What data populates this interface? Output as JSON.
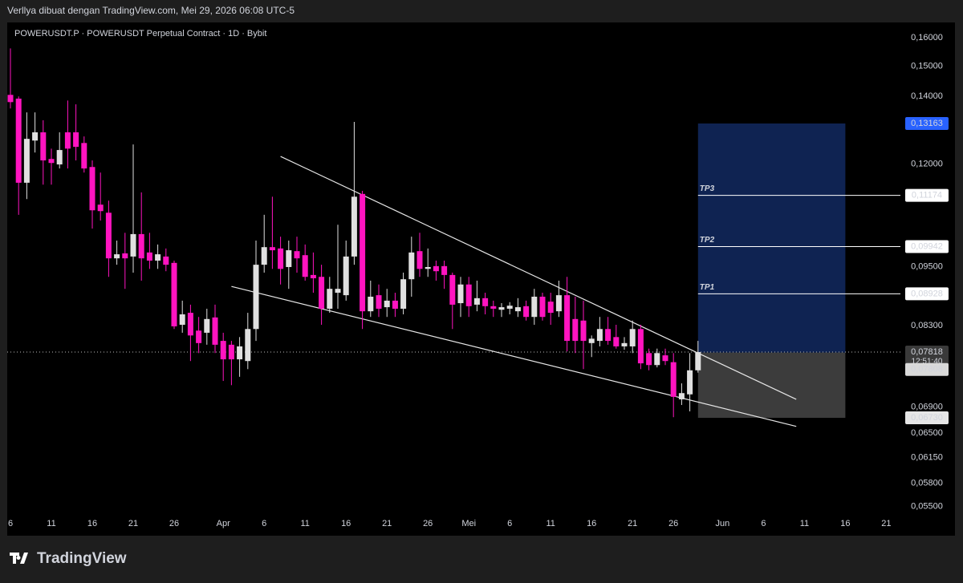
{
  "header": {
    "credit": "Verllya dibuat dengan TradingView.com, Mei 29, 2026 06:08 UTC-5"
  },
  "footer": {
    "brand": "TradingView"
  },
  "chart_data": {
    "type": "candlestick",
    "title": "POWERUSDT.P · POWERUSDT Perpetual Contract · 1D · Bybit",
    "log_scale": true,
    "grid": false,
    "up_color": "#e0e0e0",
    "down_color": "#ff14c0",
    "xlim": [
      "2026-03-05",
      "2026-06-23"
    ],
    "ylim": [
      0.05415,
      0.1651
    ],
    "xticks": [
      {
        "value": "2026-03-06",
        "label": "6"
      },
      {
        "value": "2026-03-11",
        "label": "11"
      },
      {
        "value": "2026-03-16",
        "label": "16"
      },
      {
        "value": "2026-03-21",
        "label": "21"
      },
      {
        "value": "2026-03-26",
        "label": "26"
      },
      {
        "value": "2026-04-01",
        "label": "Apr"
      },
      {
        "value": "2026-04-06",
        "label": "6"
      },
      {
        "value": "2026-04-11",
        "label": "11"
      },
      {
        "value": "2026-04-16",
        "label": "16"
      },
      {
        "value": "2026-04-21",
        "label": "21"
      },
      {
        "value": "2026-04-26",
        "label": "26"
      },
      {
        "value": "2026-05-01",
        "label": "Mei"
      },
      {
        "value": "2026-05-06",
        "label": "6"
      },
      {
        "value": "2026-05-11",
        "label": "11"
      },
      {
        "value": "2026-05-16",
        "label": "16"
      },
      {
        "value": "2026-05-21",
        "label": "21"
      },
      {
        "value": "2026-05-26",
        "label": "26"
      },
      {
        "value": "2026-06-01",
        "label": "Jun"
      },
      {
        "value": "2026-06-06",
        "label": "6"
      },
      {
        "value": "2026-06-11",
        "label": "11"
      },
      {
        "value": "2026-06-16",
        "label": "16"
      },
      {
        "value": "2026-06-21",
        "label": "21"
      }
    ],
    "yticks": [
      {
        "value": 0.16,
        "label": "0,16000"
      },
      {
        "value": 0.15,
        "label": "0,15000"
      },
      {
        "value": 0.14,
        "label": "0,14000"
      },
      {
        "value": 0.12,
        "label": "0,12000"
      },
      {
        "value": 0.095,
        "label": "0,09500"
      },
      {
        "value": 0.083,
        "label": "0,08300"
      },
      {
        "value": 0.069,
        "label": "0,06900"
      },
      {
        "value": 0.065,
        "label": "0,06500"
      },
      {
        "value": 0.0615,
        "label": "0,06150"
      },
      {
        "value": 0.058,
        "label": "0,05800"
      },
      {
        "value": 0.055,
        "label": "0,05500"
      }
    ],
    "x": [
      "2026-03-06",
      "2026-03-07",
      "2026-03-08",
      "2026-03-09",
      "2026-03-10",
      "2026-03-11",
      "2026-03-12",
      "2026-03-13",
      "2026-03-14",
      "2026-03-15",
      "2026-03-16",
      "2026-03-17",
      "2026-03-18",
      "2026-03-19",
      "2026-03-20",
      "2026-03-21",
      "2026-03-22",
      "2026-03-23",
      "2026-03-24",
      "2026-03-25",
      "2026-03-26",
      "2026-03-27",
      "2026-03-28",
      "2026-03-29",
      "2026-03-30",
      "2026-03-31",
      "2026-04-01",
      "2026-04-02",
      "2026-04-03",
      "2026-04-04",
      "2026-04-05",
      "2026-04-06",
      "2026-04-07",
      "2026-04-08",
      "2026-04-09",
      "2026-04-10",
      "2026-04-11",
      "2026-04-12",
      "2026-04-13",
      "2026-04-14",
      "2026-04-15",
      "2026-04-16",
      "2026-04-17",
      "2026-04-18",
      "2026-04-19",
      "2026-04-20",
      "2026-04-21",
      "2026-04-22",
      "2026-04-23",
      "2026-04-24",
      "2026-04-25",
      "2026-04-26",
      "2026-04-27",
      "2026-04-28",
      "2026-04-29",
      "2026-04-30",
      "2026-05-01",
      "2026-05-02",
      "2026-05-03",
      "2026-05-04",
      "2026-05-05",
      "2026-05-06",
      "2026-05-07",
      "2026-05-08",
      "2026-05-09",
      "2026-05-10",
      "2026-05-11",
      "2026-05-12",
      "2026-05-13",
      "2026-05-14",
      "2026-05-15",
      "2026-05-16",
      "2026-05-17",
      "2026-05-18",
      "2026-05-19",
      "2026-05-20",
      "2026-05-21",
      "2026-05-22",
      "2026-05-23",
      "2026-05-24",
      "2026-05-25",
      "2026-05-26",
      "2026-05-27",
      "2026-05-28",
      "2026-05-29"
    ],
    "open": [
      0.1405,
      0.1393,
      0.115,
      0.1266,
      0.129,
      0.1214,
      0.1199,
      0.129,
      0.129,
      0.1259,
      0.1192,
      0.1094,
      0.1074,
      0.0968,
      0.0979,
      0.0972,
      0.1023,
      0.0981,
      0.0963,
      0.0972,
      0.0958,
      0.0832,
      0.0855,
      0.0821,
      0.0817,
      0.0846,
      0.0802,
      0.0795,
      0.0769,
      0.0766,
      0.0824,
      0.0954,
      0.0993,
      0.099,
      0.0949,
      0.0984,
      0.0975,
      0.0932,
      0.0928,
      0.0863,
      0.0895,
      0.089,
      0.0972,
      0.1121,
      0.0858,
      0.089,
      0.0866,
      0.0879,
      0.0863,
      0.0923,
      0.0984,
      0.0945,
      0.0951,
      0.0951,
      0.0932,
      0.0874,
      0.0912,
      0.0871,
      0.0884,
      0.0868,
      0.0861,
      0.0863,
      0.0858,
      0.0868,
      0.0847,
      0.0887,
      0.0877,
      0.0858,
      0.089,
      0.0843,
      0.084,
      0.0798,
      0.0802,
      0.0824,
      0.0809,
      0.0792,
      0.0792,
      0.0824,
      0.078,
      0.0759,
      0.0776,
      0.0764,
      0.0702,
      0.071,
      0.075
    ],
    "high": [
      0.1562,
      0.14,
      0.135,
      0.135,
      0.1326,
      0.1243,
      0.129,
      0.1387,
      0.1375,
      0.1278,
      0.121,
      0.1177,
      0.1104,
      0.1008,
      0.1026,
      0.1255,
      0.1125,
      0.1026,
      0.0999,
      0.099,
      0.0963,
      0.0879,
      0.0871,
      0.0847,
      0.0863,
      0.0871,
      0.0817,
      0.0802,
      0.0809,
      0.0855,
      0.1008,
      0.1069,
      0.1114,
      0.1017,
      0.1008,
      0.1017,
      0.0999,
      0.0981,
      0.0954,
      0.0928,
      0.1045,
      0.1008,
      0.1321,
      0.1129,
      0.092,
      0.0912,
      0.0903,
      0.0895,
      0.0937,
      0.1017,
      0.1026,
      0.099,
      0.0963,
      0.0963,
      0.0937,
      0.0928,
      0.0928,
      0.092,
      0.0895,
      0.0879,
      0.0874,
      0.0876,
      0.0884,
      0.0879,
      0.0903,
      0.0895,
      0.0895,
      0.092,
      0.0928,
      0.0887,
      0.0879,
      0.0812,
      0.0847,
      0.0847,
      0.0832,
      0.0809,
      0.084,
      0.0832,
      0.0788,
      0.0788,
      0.0788,
      0.078,
      0.0728,
      0.078,
      0.0802
    ],
    "low": [
      0.1362,
      0.1069,
      0.1108,
      0.1232,
      0.1145,
      0.1145,
      0.1188,
      0.1188,
      0.121,
      0.1177,
      0.1036,
      0.1055,
      0.0928,
      0.0954,
      0.0903,
      0.0937,
      0.092,
      0.0945,
      0.0945,
      0.094,
      0.0824,
      0.0817,
      0.0766,
      0.078,
      0.0795,
      0.078,
      0.0732,
      0.0725,
      0.0739,
      0.0752,
      0.0802,
      0.0937,
      0.0945,
      0.0912,
      0.0903,
      0.0937,
      0.092,
      0.0895,
      0.0832,
      0.0855,
      0.0863,
      0.0879,
      0.0954,
      0.0824,
      0.0847,
      0.0847,
      0.0847,
      0.0847,
      0.0852,
      0.0887,
      0.0928,
      0.0928,
      0.092,
      0.0903,
      0.0824,
      0.0847,
      0.0847,
      0.0858,
      0.0852,
      0.0847,
      0.0847,
      0.0852,
      0.0847,
      0.084,
      0.0832,
      0.084,
      0.0832,
      0.0847,
      0.0783,
      0.078,
      0.0752,
      0.0773,
      0.0792,
      0.0795,
      0.0788,
      0.0786,
      0.078,
      0.0752,
      0.075,
      0.0755,
      0.0759,
      0.0674,
      0.0693,
      0.0683,
      0.0746
    ],
    "close": [
      0.1382,
      0.115,
      0.1271,
      0.129,
      0.121,
      0.1203,
      0.1239,
      0.1243,
      0.1248,
      0.1188,
      0.108,
      0.1078,
      0.0968,
      0.0977,
      0.0968,
      0.1023,
      0.0968,
      0.0963,
      0.0977,
      0.0954,
      0.0829,
      0.0852,
      0.0812,
      0.0798,
      0.0843,
      0.0795,
      0.0769,
      0.0769,
      0.0792,
      0.0824,
      0.0954,
      0.0993,
      0.0986,
      0.0945,
      0.0986,
      0.0968,
      0.0928,
      0.0925,
      0.0863,
      0.0903,
      0.0903,
      0.0972,
      0.1114,
      0.0858,
      0.0887,
      0.0863,
      0.0879,
      0.0863,
      0.0923,
      0.0981,
      0.0945,
      0.0949,
      0.094,
      0.0932,
      0.0871,
      0.0912,
      0.0868,
      0.0884,
      0.0868,
      0.0863,
      0.0866,
      0.0869,
      0.0866,
      0.0847,
      0.0887,
      0.0847,
      0.0855,
      0.089,
      0.0802,
      0.0802,
      0.0802,
      0.0806,
      0.0824,
      0.0802,
      0.0792,
      0.0798,
      0.0824,
      0.0762,
      0.0759,
      0.078,
      0.0766,
      0.0706,
      0.0712,
      0.075,
      0.07818
    ],
    "trend_lines": [
      {
        "start": {
          "x": "2026-04-08",
          "price": 0.1221
        },
        "end": {
          "x": "2026-06-10",
          "price": 0.0702
        }
      },
      {
        "start": {
          "x": "2026-04-02",
          "price": 0.0908
        },
        "end": {
          "x": "2026-06-10",
          "price": 0.066
        }
      }
    ],
    "position": {
      "start": "2026-05-29",
      "end": "2026-06-16",
      "target": {
        "value": 0.13163,
        "label": "0,13163"
      },
      "entry": {
        "value": 0.07808,
        "label": "0,07808"
      },
      "stop": {
        "value": 0.0673,
        "label": "0,06730"
      },
      "profit_color": "#0f2352",
      "loss_color": "#3c3c3c",
      "target_tag_color": "#2962ff"
    },
    "take_profits": [
      {
        "name": "TP3",
        "value": 0.11174,
        "label": "0,11174"
      },
      {
        "name": "TP2",
        "value": 0.09942,
        "label": "0,09942"
      },
      {
        "name": "TP1",
        "value": 0.08928,
        "label": "0,08928"
      }
    ],
    "last_price": {
      "value": 0.07818,
      "label": "0,07818"
    },
    "countdown": "12:51:40"
  }
}
